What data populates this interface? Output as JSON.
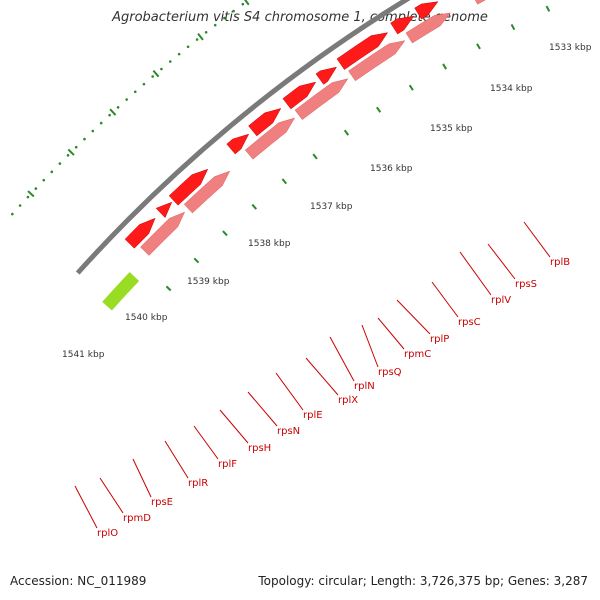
{
  "title": "Agrobacterium vitis S4 chromosome 1, complete genome",
  "footer": {
    "accession": "Accession: NC_011989",
    "stats": "Topology: circular; Length: 3,726,375 bp; Genes: 3,287"
  },
  "colors": {
    "backbone": "#7a7a7a",
    "cds_forward": "#ff1a1a",
    "cds_reverse": "#f08080",
    "other_feature": "#99dd22",
    "tick": "#2a8a2a",
    "gene_label": "#cc0000"
  },
  "scale_labels": [
    "1533 kbp",
    "1534 kbp",
    "1535 kbp",
    "1536 kbp",
    "1537 kbp",
    "1538 kbp",
    "1539 kbp",
    "1540 kbp",
    "1541 kbp"
  ],
  "gene_labels": [
    "rplB",
    "rpsS",
    "rplV",
    "rpsC",
    "rplP",
    "rpmC",
    "rpsQ",
    "rplN",
    "rplX",
    "rplE",
    "rpsN",
    "rpsH",
    "rplF",
    "rplR",
    "rpsE",
    "rpmD",
    "rplO"
  ]
}
